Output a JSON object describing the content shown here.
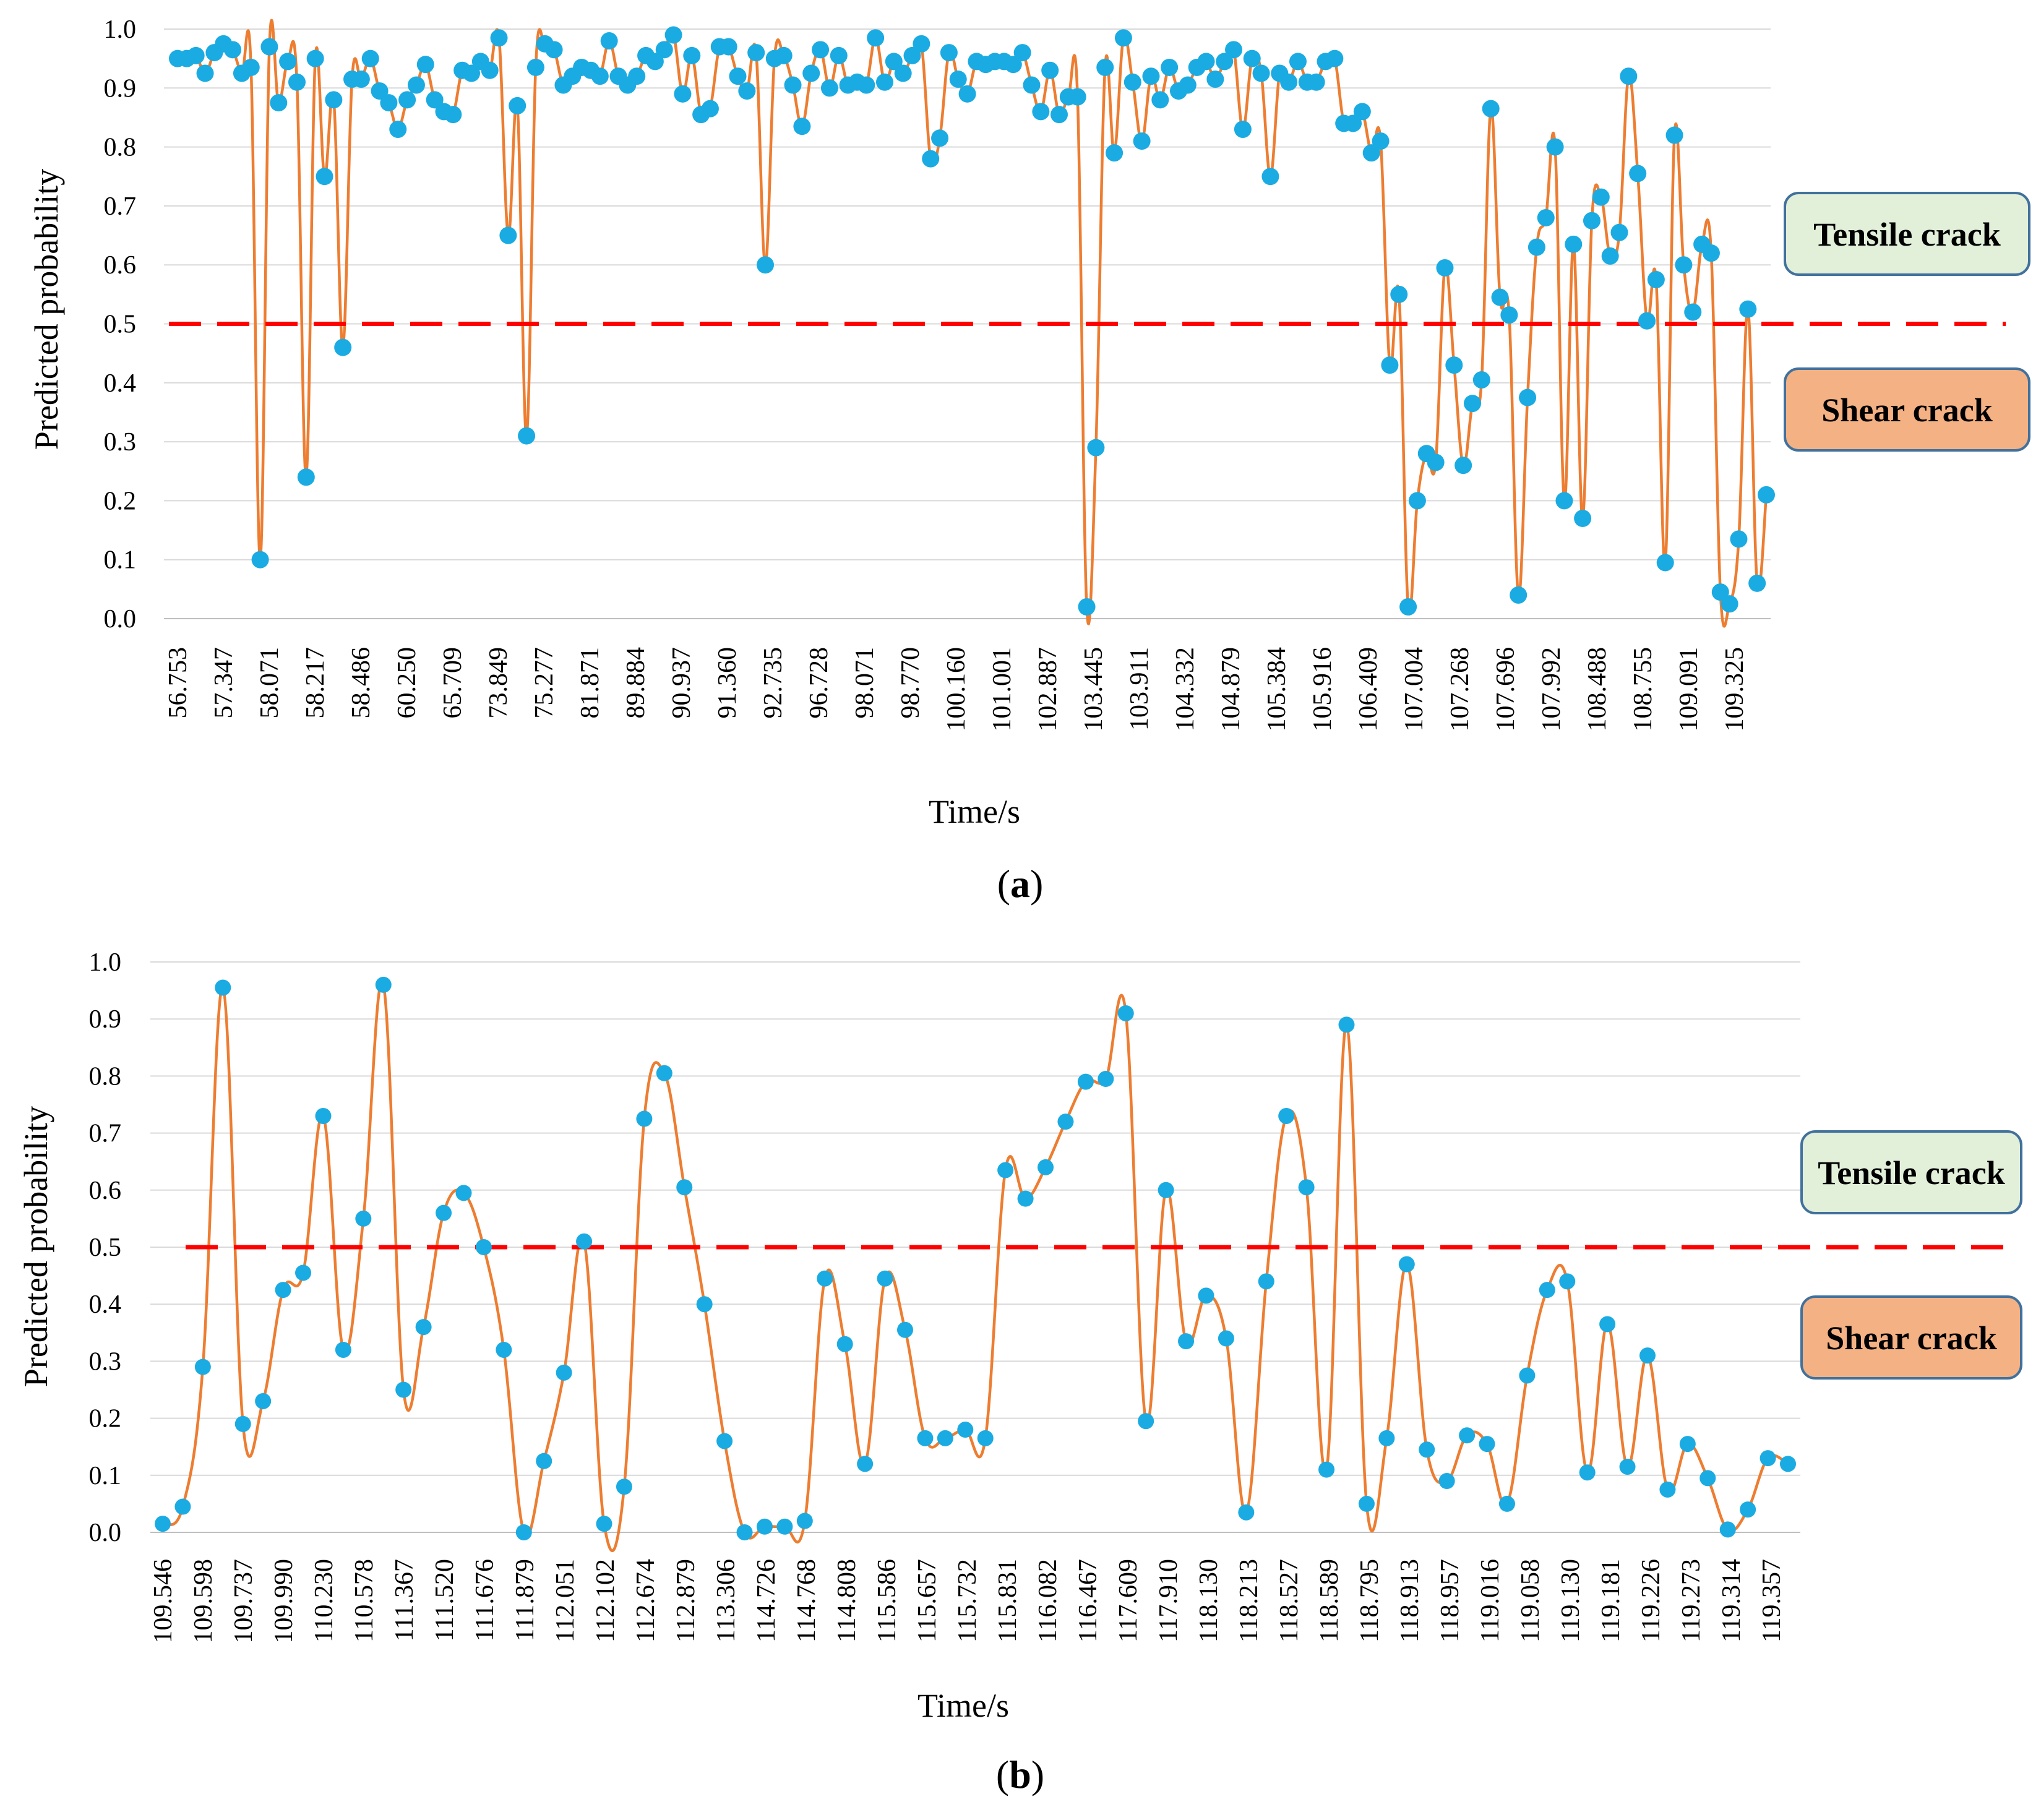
{
  "figure": {
    "background": "#ffffff",
    "line_color": "#ED7D31",
    "marker_color": "#1AABE3",
    "grid_color": "#D9D9D9",
    "threshold_color": "#FF0000",
    "tensile_box_color": "#E2EFD9",
    "shear_box_color": "#F4B183",
    "box_border_color": "#41719C"
  },
  "chart_data": [
    {
      "panel": "a",
      "label": "(a)",
      "type": "line",
      "xlabel": "Time/s",
      "ylabel": "Predicted  probability",
      "ylim": [
        0,
        1
      ],
      "y_ticks": [
        "0.0",
        "0.1",
        "0.2",
        "0.3",
        "0.4",
        "0.5",
        "0.6",
        "0.7",
        "0.8",
        "0.9",
        "1.0"
      ],
      "threshold": 0.5,
      "annotations": {
        "tensile": "Tensile crack",
        "shear": "Shear crack"
      },
      "x_tick_labels": [
        "56.753",
        "57.347",
        "58.071",
        "58.217",
        "58.486",
        "60.250",
        "65.709",
        "73.849",
        "75.277",
        "81.871",
        "89.884",
        "90.937",
        "91.360",
        "92.735",
        "96.728",
        "98.071",
        "98.770",
        "100.160",
        "101.001",
        "102.887",
        "103.445",
        "103.911",
        "104.332",
        "104.879",
        "105.384",
        "105.916",
        "106.409",
        "107.004",
        "107.268",
        "107.696",
        "107.992",
        "108.488",
        "108.755",
        "109.091",
        "109.325"
      ],
      "values": [
        0.95,
        0.95,
        0.955,
        0.925,
        0.96,
        0.975,
        0.965,
        0.925,
        0.935,
        0.1,
        0.97,
        0.875,
        0.945,
        0.91,
        0.24,
        0.95,
        0.75,
        0.88,
        0.46,
        0.915,
        0.915,
        0.95,
        0.895,
        0.875,
        0.83,
        0.88,
        0.905,
        0.94,
        0.88,
        0.86,
        0.855,
        0.93,
        0.925,
        0.945,
        0.93,
        0.985,
        0.65,
        0.87,
        0.31,
        0.935,
        0.975,
        0.965,
        0.905,
        0.92,
        0.935,
        0.93,
        0.92,
        0.98,
        0.92,
        0.905,
        0.92,
        0.955,
        0.945,
        0.965,
        0.99,
        0.89,
        0.955,
        0.855,
        0.865,
        0.97,
        0.97,
        0.92,
        0.895,
        0.96,
        0.6,
        0.95,
        0.955,
        0.905,
        0.835,
        0.925,
        0.965,
        0.9,
        0.955,
        0.905,
        0.91,
        0.905,
        0.985,
        0.91,
        0.945,
        0.925,
        0.955,
        0.975,
        0.78,
        0.815,
        0.96,
        0.915,
        0.89,
        0.945,
        0.94,
        0.945,
        0.945,
        0.94,
        0.96,
        0.905,
        0.86,
        0.93,
        0.855,
        0.885,
        0.885,
        0.02,
        0.29,
        0.935,
        0.79,
        0.985,
        0.91,
        0.81,
        0.92,
        0.88,
        0.935,
        0.895,
        0.905,
        0.935,
        0.945,
        0.915,
        0.945,
        0.965,
        0.83,
        0.95,
        0.925,
        0.75,
        0.925,
        0.91,
        0.945,
        0.91,
        0.91,
        0.945,
        0.95,
        0.84,
        0.84,
        0.86,
        0.79,
        0.81,
        0.43,
        0.55,
        0.02,
        0.2,
        0.28,
        0.265,
        0.595,
        0.43,
        0.26,
        0.365,
        0.405,
        0.865,
        0.545,
        0.515,
        0.04,
        0.375,
        0.63,
        0.68,
        0.8,
        0.2,
        0.635,
        0.17,
        0.675,
        0.715,
        0.615,
        0.655,
        0.92,
        0.755,
        0.505,
        0.575,
        0.095,
        0.82,
        0.6,
        0.52,
        0.635,
        0.62,
        0.045,
        0.025,
        0.135,
        0.525,
        0.06,
        0.21
      ]
    },
    {
      "panel": "b",
      "label": "(b)",
      "type": "line",
      "xlabel": "Time/s",
      "ylabel": "Predicted  probability",
      "ylim": [
        0,
        1
      ],
      "y_ticks": [
        "0.0",
        "0.1",
        "0.2",
        "0.3",
        "0.4",
        "0.5",
        "0.6",
        "0.7",
        "0.8",
        "0.9",
        "1.0"
      ],
      "threshold": 0.5,
      "annotations": {
        "tensile": "Tensile crack",
        "shear": "Shear crack"
      },
      "x_tick_labels": [
        "109.546",
        "109.598",
        "109.737",
        "109.990",
        "110.230",
        "110.578",
        "111.367",
        "111.520",
        "111.676",
        "111.879",
        "112.051",
        "112.102",
        "112.674",
        "112.879",
        "113.306",
        "114.726",
        "114.768",
        "114.808",
        "115.586",
        "115.657",
        "115.732",
        "115.831",
        "116.082",
        "116.467",
        "117.609",
        "117.910",
        "118.130",
        "118.213",
        "118.527",
        "118.589",
        "118.795",
        "118.913",
        "118.957",
        "119.016",
        "119.058",
        "119.130",
        "119.181",
        "119.226",
        "119.273",
        "119.314",
        "119.357"
      ],
      "values": [
        0.015,
        0.045,
        0.29,
        0.955,
        0.19,
        0.23,
        0.425,
        0.455,
        0.73,
        0.32,
        0.55,
        0.96,
        0.25,
        0.36,
        0.56,
        0.595,
        0.5,
        0.32,
        0.0,
        0.125,
        0.28,
        0.51,
        0.015,
        0.08,
        0.725,
        0.805,
        0.605,
        0.4,
        0.16,
        0.0,
        0.01,
        0.01,
        0.02,
        0.445,
        0.33,
        0.12,
        0.445,
        0.355,
        0.165,
        0.165,
        0.18,
        0.165,
        0.635,
        0.585,
        0.64,
        0.72,
        0.79,
        0.795,
        0.91,
        0.195,
        0.6,
        0.335,
        0.415,
        0.34,
        0.035,
        0.44,
        0.73,
        0.605,
        0.11,
        0.89,
        0.05,
        0.165,
        0.47,
        0.145,
        0.09,
        0.17,
        0.155,
        0.05,
        0.275,
        0.425,
        0.44,
        0.105,
        0.365,
        0.115,
        0.31,
        0.075,
        0.155,
        0.095,
        0.005,
        0.04,
        0.13,
        0.12
      ]
    }
  ]
}
